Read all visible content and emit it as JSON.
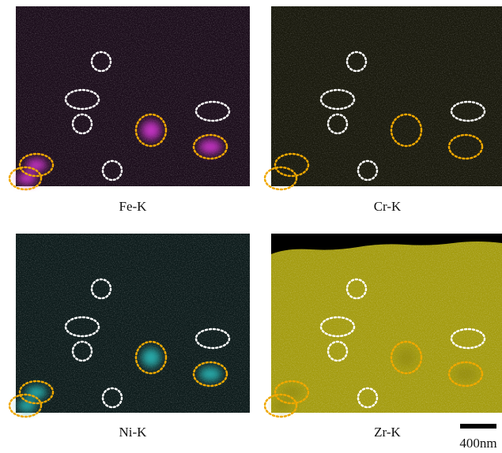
{
  "panels": [
    {
      "label": "Fe-K"
    },
    {
      "label": "Cr-K"
    },
    {
      "label": "Ni-K"
    },
    {
      "label": "Zr-K"
    }
  ],
  "scale_bar": {
    "label": "400nm"
  }
}
